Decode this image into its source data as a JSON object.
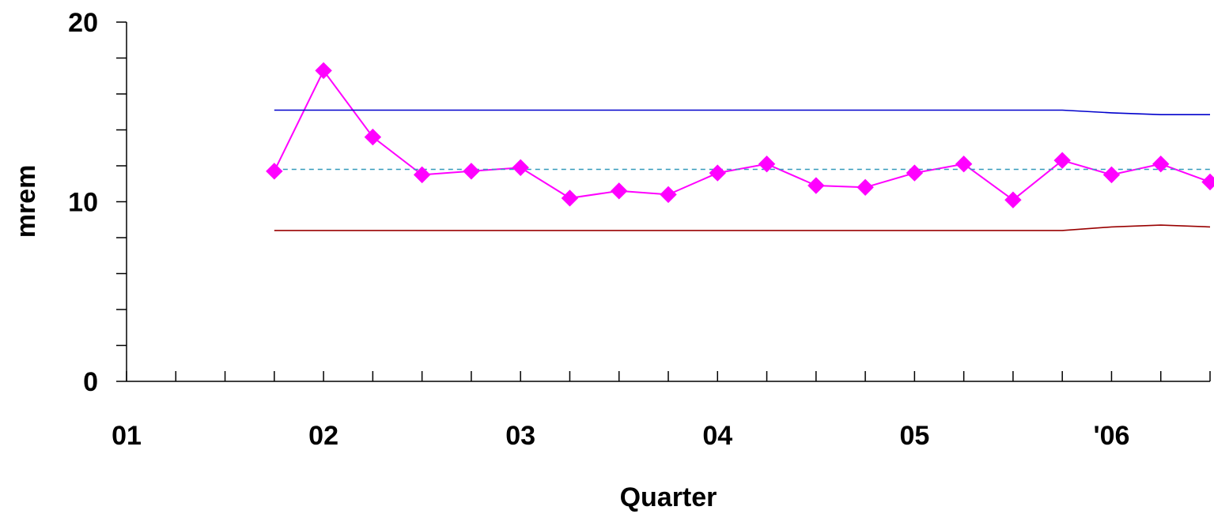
{
  "chart_data": {
    "type": "line",
    "title": "",
    "xlabel": "Quarter",
    "ylabel": "mrem",
    "ylim": [
      0,
      20
    ],
    "yticks": [
      0,
      10,
      20
    ],
    "x_tick_labels": [
      "01",
      "02",
      "03",
      "04",
      "05",
      "'06"
    ],
    "x_range_quarters": [
      0,
      22
    ],
    "grid": false,
    "legend": "none",
    "series": [
      {
        "role": "measured",
        "color": "#ff00ff",
        "style": "solid-diamond-markers",
        "x": [
          3,
          4,
          5,
          6,
          7,
          8,
          9,
          10,
          11,
          12,
          13,
          14,
          15,
          16,
          17,
          18,
          19,
          20,
          21,
          22
        ],
        "values": [
          11.7,
          17.3,
          13.6,
          11.5,
          11.7,
          11.9,
          10.2,
          10.6,
          10.4,
          11.6,
          12.1,
          10.9,
          10.8,
          11.6,
          12.1,
          10.1,
          12.3,
          11.5,
          12.1,
          11.1
        ]
      },
      {
        "role": "upper-limit",
        "color": "#0000cc",
        "style": "solid",
        "x": [
          3,
          19,
          20,
          21,
          22
        ],
        "values": [
          15.1,
          15.1,
          14.95,
          14.85,
          14.85
        ]
      },
      {
        "role": "mean",
        "color": "#3399bb",
        "style": "dashed",
        "x": [
          3,
          22
        ],
        "values": [
          11.8,
          11.8
        ]
      },
      {
        "role": "lower-limit",
        "color": "#990000",
        "style": "solid",
        "x": [
          3,
          19,
          20,
          21,
          22
        ],
        "values": [
          8.4,
          8.4,
          8.6,
          8.7,
          8.6
        ]
      }
    ]
  }
}
